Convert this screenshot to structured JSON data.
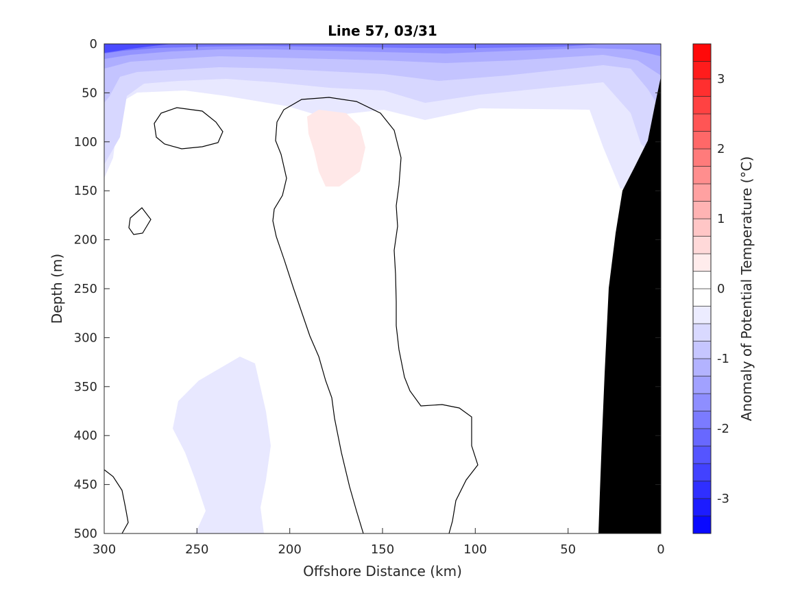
{
  "chart_data": {
    "type": "contour",
    "title": "Line 57, 03/31",
    "xlabel": "Offshore Distance (km)",
    "ylabel": "Depth (m)",
    "xlim": [
      300,
      0
    ],
    "ylim": [
      500,
      0
    ],
    "x_ticks": [
      300,
      250,
      200,
      150,
      100,
      50,
      0
    ],
    "y_ticks": [
      0,
      50,
      100,
      150,
      200,
      250,
      300,
      350,
      400,
      450,
      500
    ],
    "colorbar": {
      "label": "Anomaly of Potential Temperature (°C)",
      "range": [
        -3.5,
        3.5
      ],
      "step": 0.25,
      "ticks": [
        3,
        2,
        1,
        0,
        -1,
        -2,
        -3
      ],
      "low_color": "#0000ff",
      "mid_color": "#ffffff",
      "high_color": "#ff0000"
    },
    "regions": [
      {
        "name": "negative-anomaly-surface-band",
        "anomaly_min": -2.75,
        "anomaly_max": -0.25,
        "color": "#3c3cff"
      },
      {
        "name": "positive-anomaly-patch",
        "anomaly": 0.25,
        "color": "#ffe8e8"
      },
      {
        "name": "negative-anomaly-deep-patch",
        "anomaly": -0.25,
        "color": "#e8e8ff"
      },
      {
        "name": "zero-contours",
        "anomaly": 0,
        "color": "#000000"
      },
      {
        "name": "bathymetry",
        "color": "#000000"
      }
    ],
    "grid": false,
    "legend": "colorbar-right"
  }
}
